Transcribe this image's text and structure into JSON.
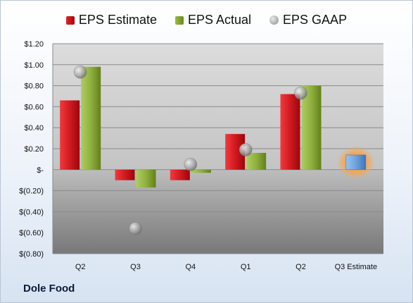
{
  "company": "Dole Food",
  "legend": {
    "estimate": "EPS Estimate",
    "actual": "EPS Actual",
    "gaap": "EPS GAAP"
  },
  "colors": {
    "estimate": "#c8151b",
    "actual": "#8aac3c",
    "gaap": "#a0a0a0",
    "forecast": "#6fa2dc",
    "forecast_glow": "#f5a550"
  },
  "chart_data": {
    "type": "bar",
    "categories": [
      "Q2",
      "Q3",
      "Q4",
      "Q1",
      "Q2",
      "Q3 Estimate"
    ],
    "series": [
      {
        "name": "EPS Estimate",
        "values": [
          0.66,
          -0.1,
          -0.1,
          0.34,
          0.72,
          null
        ]
      },
      {
        "name": "EPS Actual",
        "values": [
          0.98,
          -0.17,
          -0.03,
          0.16,
          0.8,
          null
        ]
      },
      {
        "name": "EPS GAAP",
        "values": [
          0.93,
          -0.56,
          0.05,
          0.19,
          0.73,
          null
        ]
      }
    ],
    "forecast": {
      "category": "Q3 Estimate",
      "value": 0.14
    },
    "ylim": [
      -0.8,
      1.2
    ],
    "yticks": [
      1.2,
      1.0,
      0.8,
      0.6,
      0.4,
      0.2,
      0,
      -0.2,
      -0.4,
      -0.6,
      -0.8
    ],
    "ytick_labels": [
      "$1.20",
      "$1.00",
      "$0.80",
      "$0.60",
      "$0.40",
      "$0.20",
      "$-",
      "$(0.20)",
      "$(0.40)",
      "$(0.60)",
      "$(0.80)"
    ],
    "grid": true,
    "legend_position": "top"
  }
}
